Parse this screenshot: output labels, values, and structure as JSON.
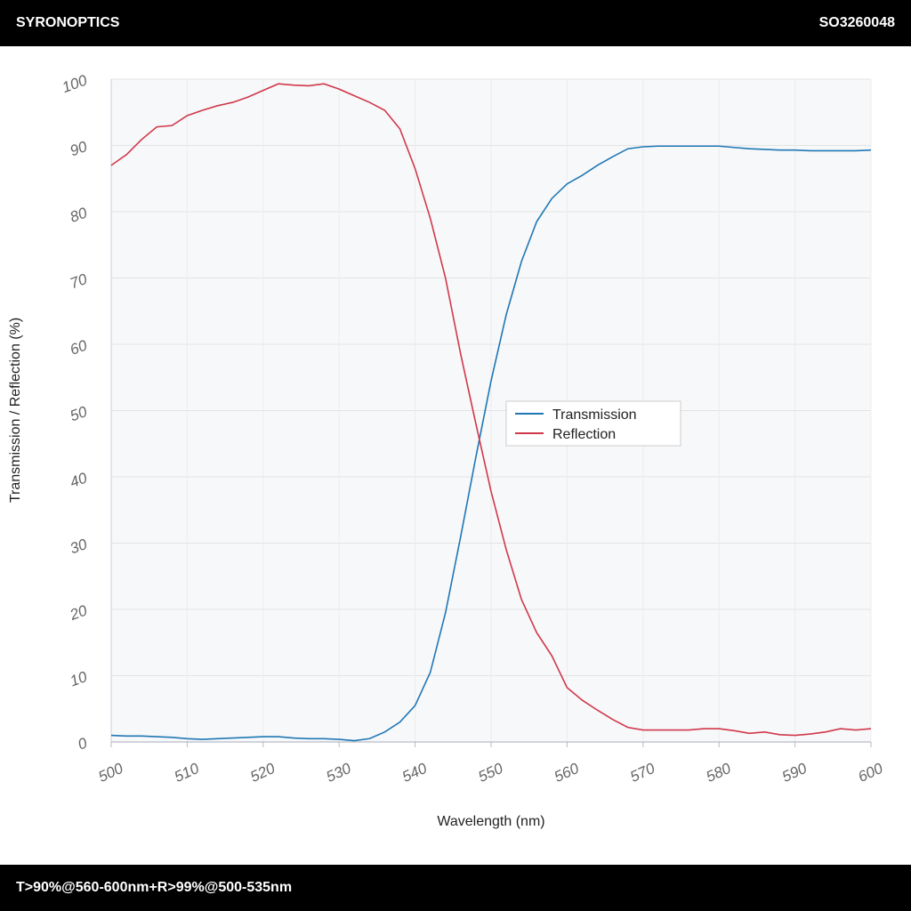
{
  "header": {
    "brand": "SYRONOPTICS",
    "code": "SO3260048"
  },
  "footer": {
    "text": "T>90%@560-600nm+R>99%@500-535nm"
  },
  "chart_data": {
    "type": "line",
    "x_label": "Wavelength (nm)",
    "y_label": "Transmission / Reflection (%)",
    "x": [
      500,
      502,
      504,
      506,
      508,
      510,
      512,
      514,
      516,
      518,
      520,
      522,
      524,
      526,
      528,
      530,
      532,
      534,
      536,
      538,
      540,
      542,
      544,
      546,
      548,
      550,
      552,
      554,
      556,
      558,
      560,
      562,
      564,
      566,
      568,
      570,
      572,
      574,
      576,
      578,
      580,
      582,
      584,
      586,
      588,
      590,
      592,
      594,
      596,
      598,
      600
    ],
    "series": [
      {
        "name": "Transmission",
        "color": "#1f77b4",
        "values": [
          1,
          0.9,
          0.9,
          0.8,
          0.7,
          0.5,
          0.4,
          0.5,
          0.6,
          0.7,
          0.8,
          0.8,
          0.6,
          0.5,
          0.5,
          0.4,
          0.2,
          0.5,
          1.5,
          3,
          5.5,
          10.5,
          19.5,
          31,
          43,
          54.5,
          64.5,
          72.5,
          78.5,
          82,
          84.2,
          85.5,
          87,
          88.3,
          89.5,
          89.8,
          89.9,
          89.9,
          89.9,
          89.9,
          89.9,
          89.7,
          89.5,
          89.4,
          89.3,
          89.3,
          89.2,
          89.2,
          89.2,
          89.2,
          89.3
        ]
      },
      {
        "name": "Reflection",
        "color": "#d0384a",
        "values": [
          87,
          88.6,
          90.9,
          92.8,
          93,
          94.5,
          95.3,
          96,
          96.5,
          97.3,
          98.3,
          99.3,
          99.1,
          99,
          99.3,
          98.5,
          97.5,
          96.5,
          95.3,
          92.5,
          86.5,
          79,
          70,
          58.5,
          48,
          37.8,
          29,
          21.5,
          16.5,
          13,
          8.2,
          6.3,
          4.8,
          3.4,
          2.2,
          1.8,
          1.8,
          1.8,
          1.8,
          2,
          2,
          1.7,
          1.3,
          1.5,
          1.1,
          1,
          1.2,
          1.5,
          2,
          1.8,
          2
        ]
      }
    ],
    "xlim": [
      500,
      600
    ],
    "ylim": [
      0,
      100
    ],
    "xticks": [
      500,
      510,
      520,
      530,
      540,
      550,
      560,
      570,
      580,
      590,
      600
    ],
    "yticks": [
      0,
      10,
      20,
      30,
      40,
      50,
      60,
      70,
      80,
      90,
      100
    ],
    "grid": true,
    "legend": "center"
  }
}
